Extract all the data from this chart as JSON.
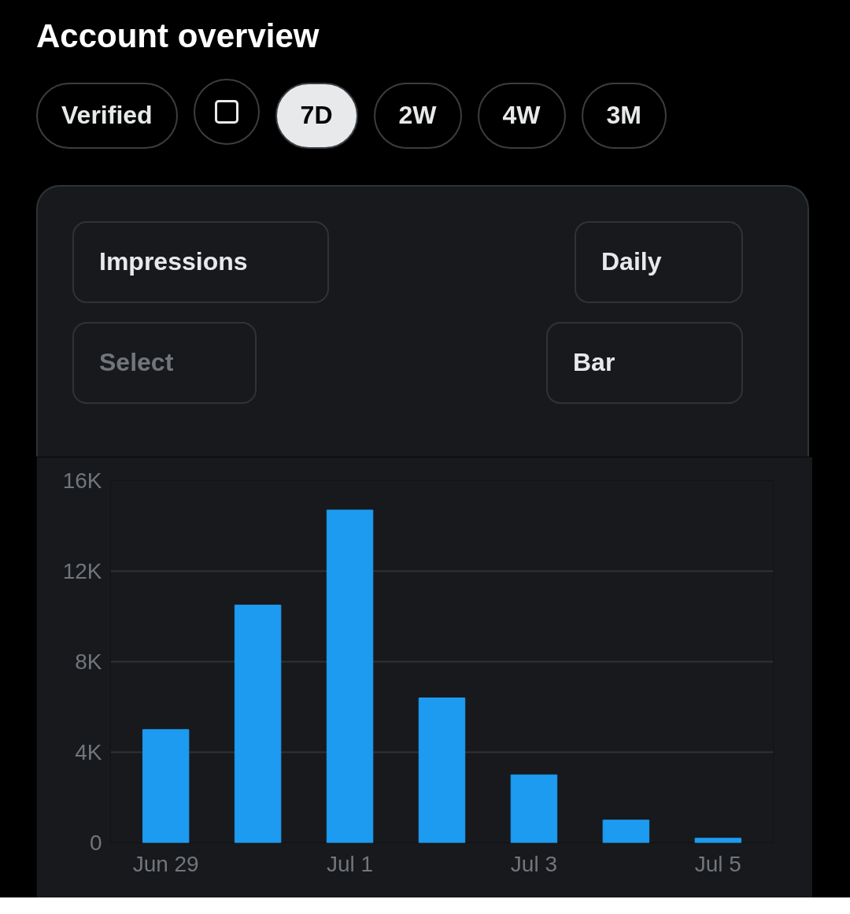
{
  "chart_data": {
    "type": "bar",
    "title": "Account overview",
    "annotations": [
      "Verified",
      "7D",
      "2W",
      "4W",
      "3M",
      "Impressions",
      "Daily",
      "Select",
      "Bar"
    ],
    "categories": [
      "Jun 29",
      null,
      "Jul 1",
      null,
      "Jul 3",
      null,
      "Jul 5"
    ],
    "values": [
      5000,
      10500,
      14700,
      6400,
      3000,
      1000,
      200
    ],
    "color": "#1d9bf0",
    "ylim": [
      0,
      16000
    ],
    "yticks": [
      0,
      {
        "value": 4000,
        "label": "4K"
      },
      {
        "value": 8000,
        "label": "8K"
      },
      {
        "value": 12000,
        "label": "12K"
      },
      {
        "value": 16000,
        "label": "16K"
      }
    ],
    "grid": "y"
  }
}
